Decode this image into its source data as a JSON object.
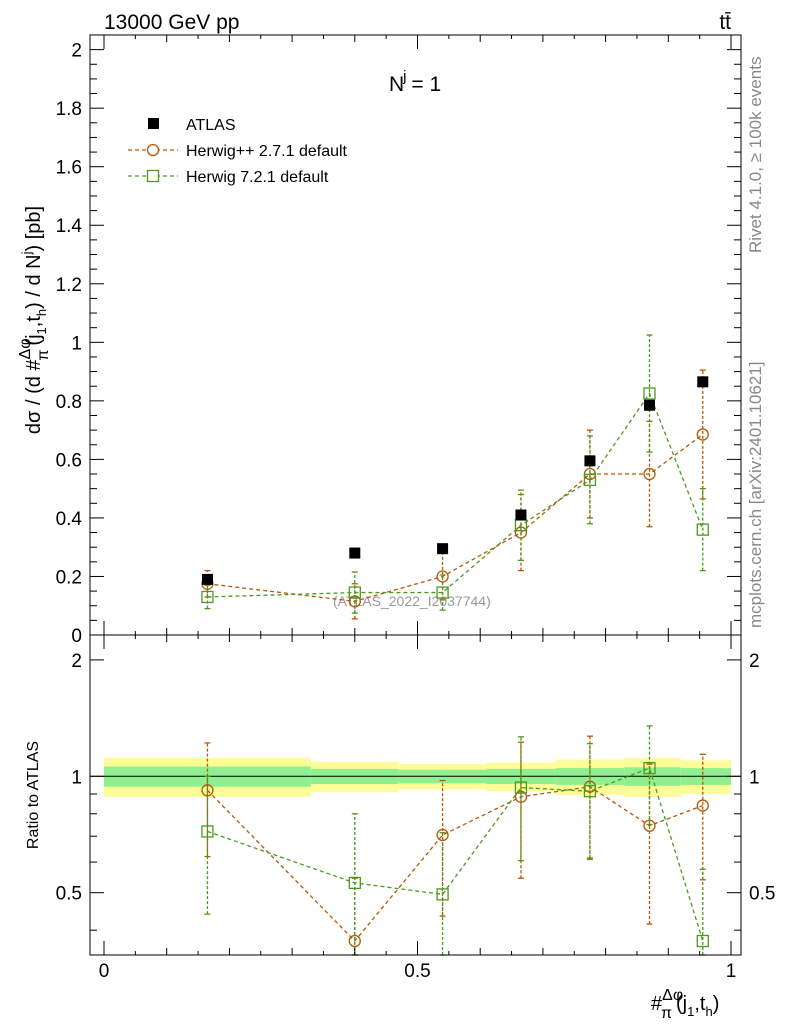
{
  "header": {
    "left": "13000 GeV pp",
    "right": "tt̄"
  },
  "side_labels": {
    "rivet": "Rivet 4.1.0, ≥ 100k events",
    "mcplots": "mcplots.cern.ch [arXiv:2401.10621]"
  },
  "watermark": "(ATLAS_2022_I2037744)",
  "colors": {
    "data": "#000000",
    "herwigpp": "#b35806",
    "herwig7": "#4c9a1c",
    "band_inner": "#90f090",
    "band_outer": "#fcfc98"
  },
  "chart_data": [
    {
      "type": "scatter",
      "panel": "main",
      "title": "N^j = 1",
      "title_main": "N",
      "title_sup": "j",
      "title_rest": " = 1",
      "ylabel": "dσ / (d #Δφ/π(j1,th) / d N^j) [pb]",
      "ylabel_parts": [
        "dσ / (d #",
        "Δφ",
        "π",
        "(j",
        "1",
        ",t",
        "h",
        ") / d N",
        "j",
        ") [pb]"
      ],
      "xlabel": "#Δφ/π(j1,th)",
      "xlim": [
        0,
        1
      ],
      "ylim": [
        0,
        2.05
      ],
      "yticks": [
        0,
        0.2,
        0.4,
        0.6,
        0.8,
        1,
        1.2,
        1.4,
        1.6,
        1.8,
        2
      ],
      "ytick_labels": [
        "0",
        "0.2",
        "0.4",
        "0.6",
        "0.8",
        "1",
        "1.2",
        "1.4",
        "1.6",
        "1.8",
        "2"
      ],
      "legend": [
        "ATLAS",
        "Herwig++ 2.7.1 default",
        "Herwig 7.2.1 default"
      ],
      "legend_position": "top-left",
      "series": [
        {
          "name": "ATLAS",
          "marker": "filled-square",
          "x": [
            0.165,
            0.4,
            0.54,
            0.665,
            0.775,
            0.87,
            0.955
          ],
          "y": [
            0.19,
            0.28,
            0.295,
            0.41,
            0.595,
            0.785,
            0.865
          ],
          "yerr": [
            0.01,
            0.01,
            0.01,
            0.015,
            0.015,
            0.015,
            0.015
          ]
        },
        {
          "name": "Herwig++ 2.7.1 default",
          "marker": "open-circle",
          "x": [
            0.165,
            0.4,
            0.54,
            0.665,
            0.775,
            0.87,
            0.955
          ],
          "y": [
            0.175,
            0.115,
            0.2,
            0.35,
            0.55,
            0.55,
            0.685
          ],
          "yerr": [
            0.045,
            0.06,
            0.08,
            0.13,
            0.15,
            0.18,
            0.22
          ]
        },
        {
          "name": "Herwig 7.2.1 default",
          "marker": "open-square",
          "x": [
            0.165,
            0.4,
            0.54,
            0.665,
            0.775,
            0.87,
            0.955
          ],
          "y": [
            0.13,
            0.145,
            0.145,
            0.375,
            0.53,
            0.825,
            0.36
          ],
          "yerr": [
            0.04,
            0.07,
            0.06,
            0.12,
            0.15,
            0.2,
            0.14
          ]
        }
      ]
    },
    {
      "type": "line",
      "panel": "ratio",
      "ylabel": "Ratio to ATLAS",
      "xlabel": "#Δφ/π(j1,th)",
      "xlabel_parts": [
        "#",
        "Δφ",
        "π",
        "(j",
        "1",
        ",t",
        "h",
        ")"
      ],
      "xlim": [
        0,
        1
      ],
      "ylim": [
        0.345,
        2.32
      ],
      "xticks": [
        0,
        0.5,
        1
      ],
      "xtick_labels": [
        "0",
        "0.5",
        "1"
      ],
      "yticks": [
        0.5,
        1,
        2
      ],
      "ytick_labels": [
        "0.5",
        "1",
        "2"
      ],
      "reference_line": 1,
      "band": {
        "edges": [
          0,
          0.33,
          0.47,
          0.61,
          0.72,
          0.83,
          0.92,
          1
        ],
        "inner_lo": [
          0.94,
          0.955,
          0.96,
          0.955,
          0.95,
          0.945,
          0.95
        ],
        "inner_hi": [
          1.06,
          1.045,
          1.04,
          1.045,
          1.05,
          1.055,
          1.05
        ],
        "outer_lo": [
          0.885,
          0.91,
          0.925,
          0.915,
          0.895,
          0.885,
          0.9
        ],
        "outer_hi": [
          1.115,
          1.09,
          1.075,
          1.085,
          1.105,
          1.115,
          1.1
        ]
      },
      "series": [
        {
          "name": "Herwig++ 2.7.1 default",
          "marker": "open-circle",
          "x": [
            0.165,
            0.4,
            0.54,
            0.665,
            0.775,
            0.87,
            0.955
          ],
          "y": [
            0.92,
            0.375,
            0.705,
            0.885,
            0.94,
            0.745,
            0.84
          ],
          "yerr": [
            0.3,
            0.17,
            0.27,
            0.34,
            0.33,
            0.33,
            0.3
          ]
        },
        {
          "name": "Herwig 7.2.1 default",
          "marker": "open-square",
          "x": [
            0.165,
            0.4,
            0.54,
            0.665,
            0.775,
            0.87,
            0.955
          ],
          "y": [
            0.72,
            0.53,
            0.495,
            0.935,
            0.915,
            1.05,
            0.375
          ],
          "yerr": [
            0.28,
            0.27,
            0.22,
            0.33,
            0.3,
            0.3,
            0.2
          ]
        }
      ]
    }
  ]
}
